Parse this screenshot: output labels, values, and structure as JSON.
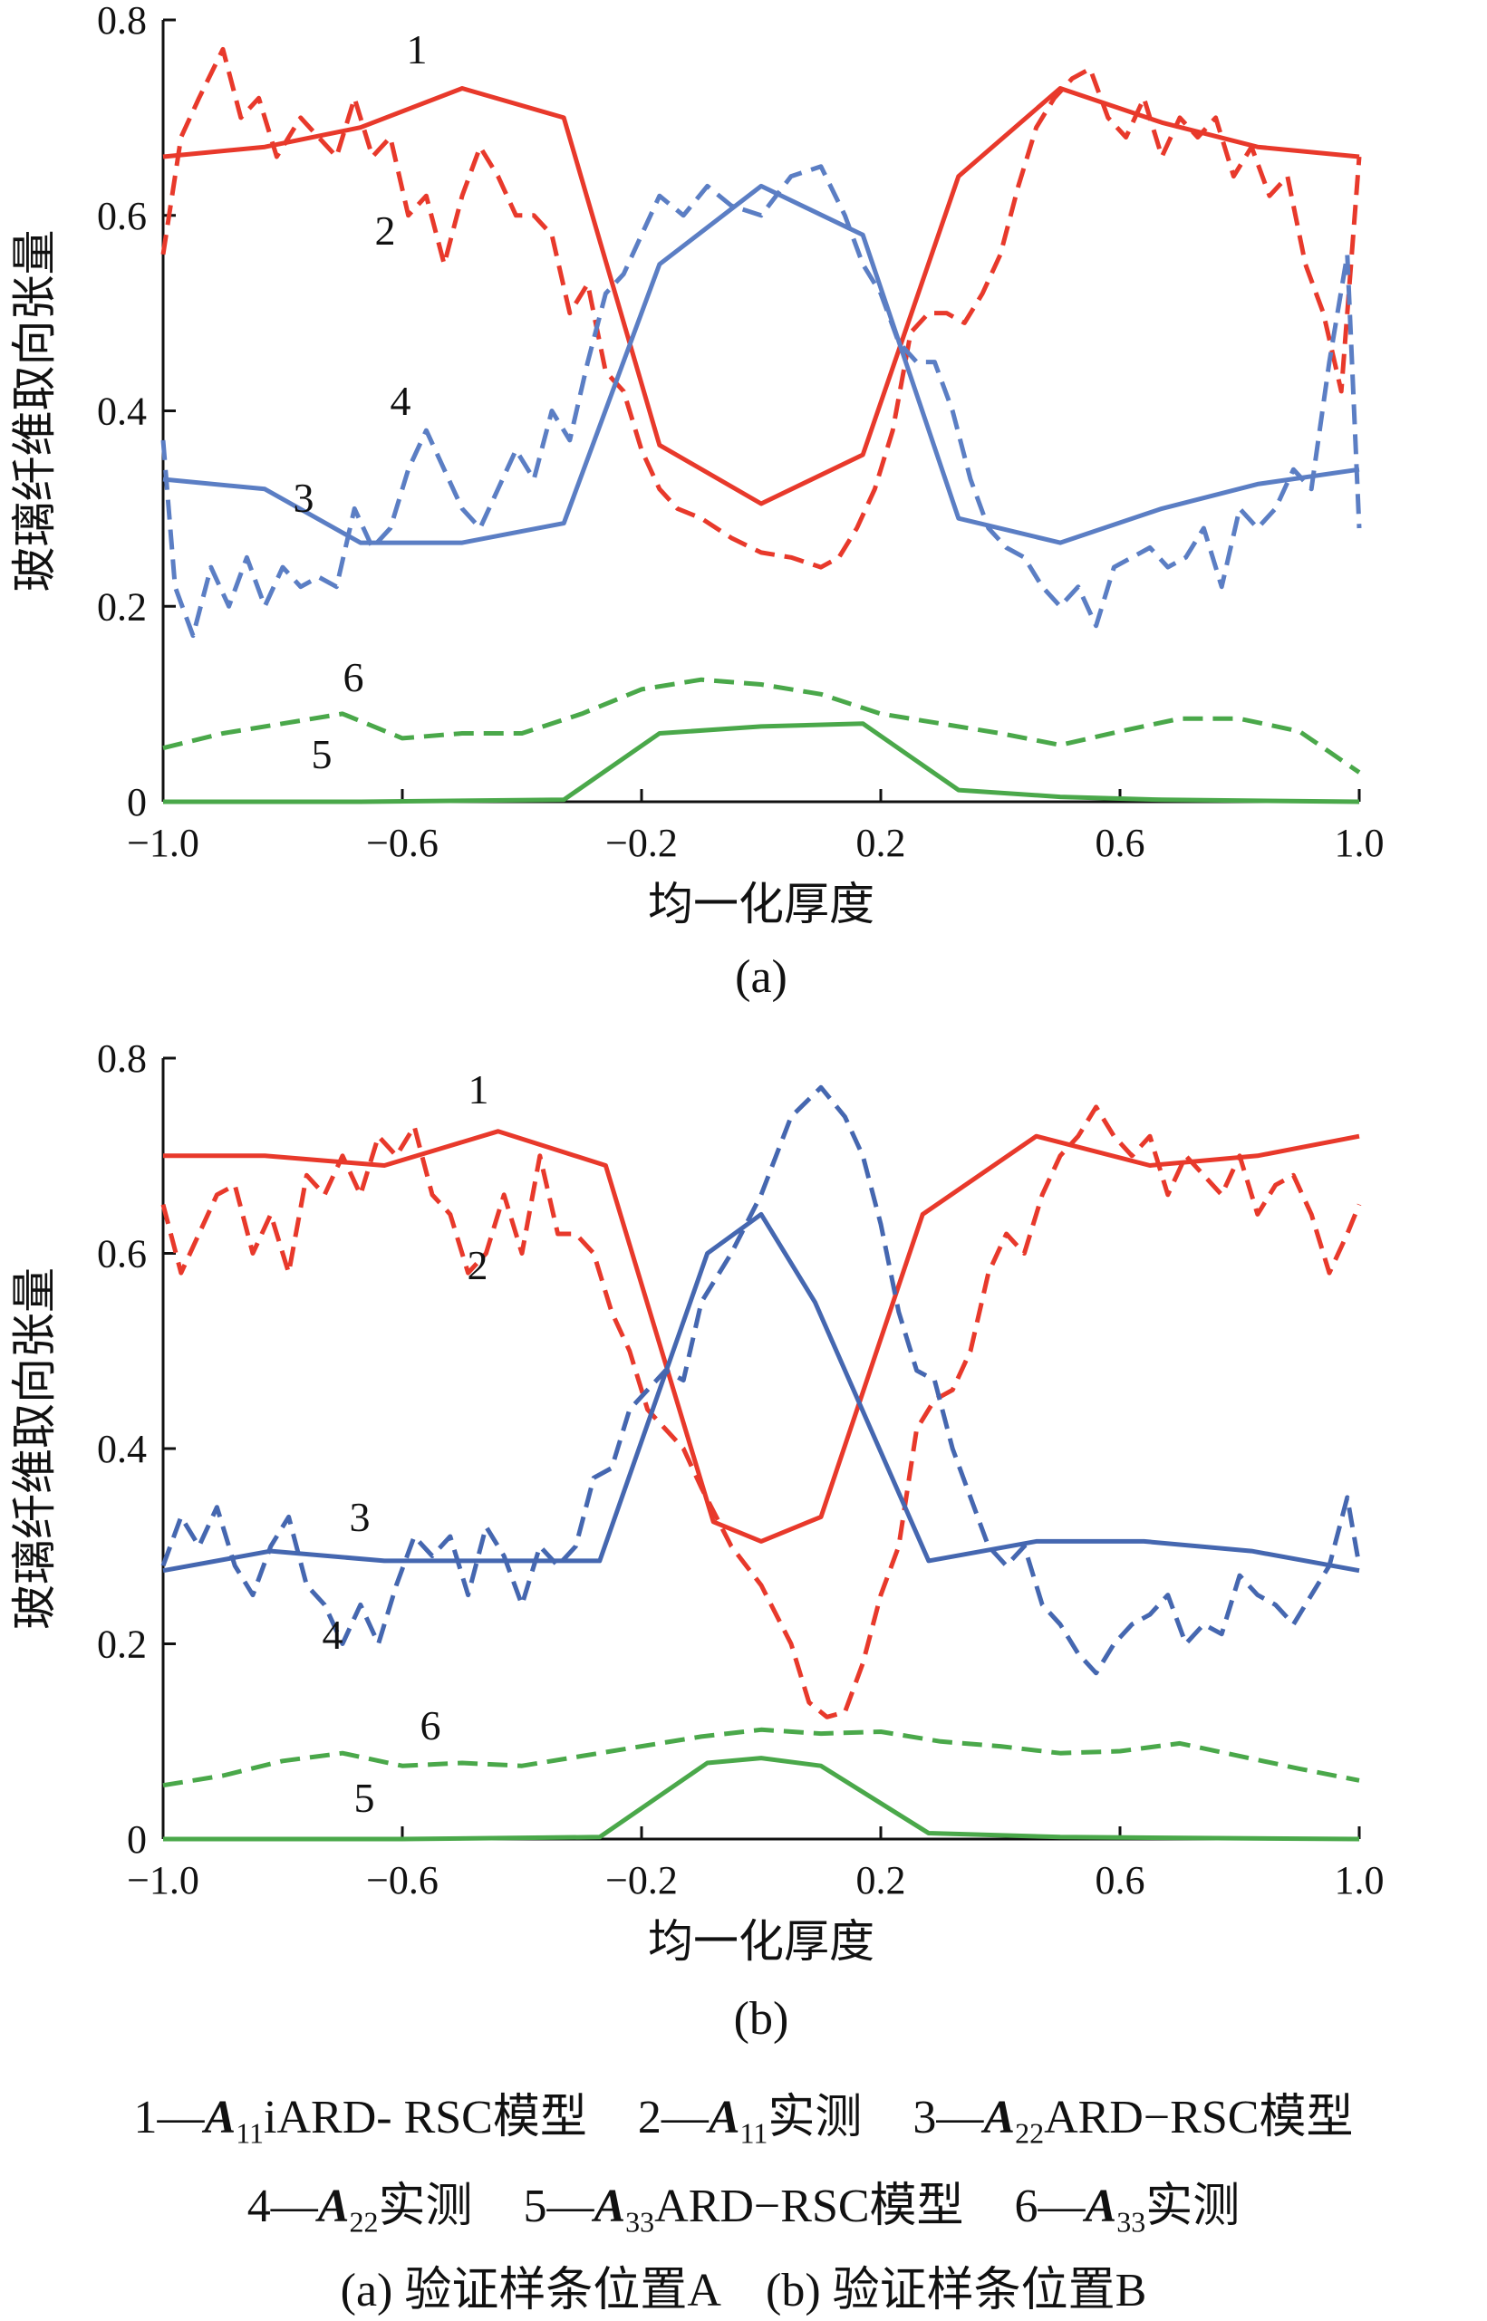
{
  "chart_data": [
    {
      "type": "line",
      "caption": "(a)",
      "xlabel": "均一化厚度",
      "ylabel": "玻璃纤维取向张量",
      "xlim": [
        -1.0,
        1.0
      ],
      "ylim": [
        0,
        0.8
      ],
      "xticks": [
        "−1.0",
        "−0.6",
        "−0.2",
        "0.2",
        "0.6",
        "1.0"
      ],
      "yticks": [
        "0",
        "0.2",
        "0.4",
        "0.6",
        "0.8"
      ],
      "series": [
        {
          "name": "1",
          "color": "#e8392b",
          "style": "solid",
          "x": [
            -1.0,
            -0.83,
            -0.67,
            -0.5,
            -0.33,
            -0.17,
            0.0,
            0.17,
            0.33,
            0.5,
            0.67,
            0.83,
            1.0
          ],
          "y": [
            0.66,
            0.67,
            0.69,
            0.73,
            0.7,
            0.365,
            0.305,
            0.355,
            0.64,
            0.73,
            0.695,
            0.67,
            0.66
          ]
        },
        {
          "name": "2",
          "color": "#e8392b",
          "style": "dashed",
          "x": [
            -1.0,
            -0.97,
            -0.94,
            -0.9,
            -0.87,
            -0.84,
            -0.81,
            -0.77,
            -0.74,
            -0.71,
            -0.68,
            -0.65,
            -0.62,
            -0.59,
            -0.56,
            -0.53,
            -0.5,
            -0.47,
            -0.44,
            -0.41,
            -0.38,
            -0.35,
            -0.32,
            -0.29,
            -0.26,
            -0.23,
            -0.2,
            -0.17,
            -0.14,
            -0.1,
            -0.05,
            0.0,
            0.05,
            0.1,
            0.13,
            0.16,
            0.19,
            0.22,
            0.25,
            0.28,
            0.31,
            0.34,
            0.37,
            0.4,
            0.43,
            0.46,
            0.49,
            0.52,
            0.55,
            0.58,
            0.61,
            0.64,
            0.67,
            0.7,
            0.73,
            0.76,
            0.79,
            0.82,
            0.85,
            0.88,
            0.91,
            0.94,
            0.97,
            1.0
          ],
          "y": [
            0.56,
            0.68,
            0.72,
            0.77,
            0.7,
            0.72,
            0.66,
            0.7,
            0.68,
            0.66,
            0.72,
            0.66,
            0.68,
            0.6,
            0.62,
            0.55,
            0.62,
            0.67,
            0.64,
            0.6,
            0.6,
            0.58,
            0.5,
            0.53,
            0.44,
            0.42,
            0.36,
            0.32,
            0.3,
            0.29,
            0.27,
            0.255,
            0.25,
            0.24,
            0.25,
            0.28,
            0.32,
            0.38,
            0.48,
            0.5,
            0.5,
            0.49,
            0.52,
            0.56,
            0.63,
            0.69,
            0.72,
            0.74,
            0.75,
            0.7,
            0.68,
            0.72,
            0.66,
            0.7,
            0.68,
            0.7,
            0.64,
            0.67,
            0.62,
            0.64,
            0.55,
            0.5,
            0.42,
            0.66
          ]
        },
        {
          "name": "3",
          "color": "#5b7ec4",
          "style": "solid",
          "x": [
            -1.0,
            -0.83,
            -0.67,
            -0.5,
            -0.33,
            -0.17,
            0.0,
            0.17,
            0.33,
            0.5,
            0.67,
            0.83,
            1.0
          ],
          "y": [
            0.33,
            0.32,
            0.265,
            0.265,
            0.285,
            0.55,
            0.63,
            0.58,
            0.29,
            0.265,
            0.3,
            0.325,
            0.34
          ]
        },
        {
          "name": "4",
          "color": "#5b7ec4",
          "style": "dashed",
          "x": [
            -1.0,
            -0.98,
            -0.95,
            -0.92,
            -0.89,
            -0.86,
            -0.83,
            -0.8,
            -0.77,
            -0.74,
            -0.71,
            -0.68,
            -0.65,
            -0.62,
            -0.59,
            -0.56,
            -0.53,
            -0.5,
            -0.47,
            -0.44,
            -0.41,
            -0.38,
            -0.35,
            -0.32,
            -0.29,
            -0.26,
            -0.23,
            -0.2,
            -0.17,
            -0.13,
            -0.09,
            -0.05,
            0.0,
            0.05,
            0.1,
            0.14,
            0.17,
            0.2,
            0.23,
            0.26,
            0.29,
            0.32,
            0.35,
            0.38,
            0.41,
            0.44,
            0.47,
            0.5,
            0.53,
            0.56,
            0.59,
            0.62,
            0.65,
            0.68,
            0.71,
            0.74,
            0.77,
            0.8,
            0.83,
            0.86,
            0.89,
            0.92,
            0.95,
            0.98,
            1.0
          ],
          "y": [
            0.37,
            0.22,
            0.17,
            0.24,
            0.2,
            0.25,
            0.2,
            0.24,
            0.22,
            0.23,
            0.22,
            0.3,
            0.26,
            0.28,
            0.34,
            0.38,
            0.34,
            0.3,
            0.28,
            0.32,
            0.36,
            0.33,
            0.4,
            0.37,
            0.45,
            0.52,
            0.54,
            0.58,
            0.62,
            0.6,
            0.63,
            0.61,
            0.6,
            0.64,
            0.65,
            0.6,
            0.55,
            0.52,
            0.47,
            0.45,
            0.45,
            0.4,
            0.33,
            0.28,
            0.26,
            0.25,
            0.22,
            0.2,
            0.22,
            0.18,
            0.24,
            0.25,
            0.26,
            0.24,
            0.25,
            0.28,
            0.22,
            0.3,
            0.28,
            0.3,
            0.34,
            0.32,
            0.45,
            0.56,
            0.28
          ]
        },
        {
          "name": "5",
          "color": "#4aa84a",
          "style": "solid",
          "x": [
            -1.0,
            -0.67,
            -0.33,
            -0.17,
            0.0,
            0.17,
            0.33,
            0.5,
            0.67,
            1.0
          ],
          "y": [
            0.0,
            0.0,
            0.002,
            0.07,
            0.077,
            0.08,
            0.012,
            0.005,
            0.002,
            0.0
          ]
        },
        {
          "name": "6",
          "color": "#4aa84a",
          "style": "dashed",
          "x": [
            -1.0,
            -0.9,
            -0.8,
            -0.7,
            -0.6,
            -0.5,
            -0.4,
            -0.3,
            -0.2,
            -0.1,
            0.0,
            0.1,
            0.2,
            0.3,
            0.4,
            0.5,
            0.6,
            0.7,
            0.8,
            0.9,
            1.0
          ],
          "y": [
            0.055,
            0.07,
            0.08,
            0.09,
            0.065,
            0.07,
            0.07,
            0.09,
            0.115,
            0.125,
            0.12,
            0.11,
            0.09,
            0.08,
            0.07,
            0.058,
            0.072,
            0.085,
            0.085,
            0.072,
            0.03
          ]
        }
      ]
    },
    {
      "type": "line",
      "caption": "(b)",
      "xlabel": "均一化厚度",
      "ylabel": "玻璃纤维取向张量",
      "xlim": [
        -1.0,
        1.0
      ],
      "ylim": [
        0,
        0.8
      ],
      "xticks": [
        "−1.0",
        "−0.6",
        "−0.2",
        "0.2",
        "0.6",
        "1.0"
      ],
      "yticks": [
        "0",
        "0.2",
        "0.4",
        "0.6",
        "0.8"
      ],
      "series": [
        {
          "name": "1",
          "color": "#e8392b",
          "style": "solid",
          "x": [
            -1.0,
            -0.83,
            -0.63,
            -0.44,
            -0.26,
            -0.08,
            0.0,
            0.1,
            0.27,
            0.46,
            0.65,
            0.83,
            1.0
          ],
          "y": [
            0.7,
            0.7,
            0.69,
            0.725,
            0.69,
            0.325,
            0.305,
            0.33,
            0.64,
            0.72,
            0.69,
            0.7,
            0.72
          ]
        },
        {
          "name": "2",
          "color": "#e8392b",
          "style": "dashed",
          "x": [
            -1.0,
            -0.97,
            -0.94,
            -0.91,
            -0.88,
            -0.85,
            -0.82,
            -0.79,
            -0.76,
            -0.73,
            -0.7,
            -0.67,
            -0.64,
            -0.61,
            -0.58,
            -0.55,
            -0.52,
            -0.49,
            -0.46,
            -0.43,
            -0.4,
            -0.37,
            -0.34,
            -0.31,
            -0.28,
            -0.25,
            -0.22,
            -0.19,
            -0.16,
            -0.13,
            -0.1,
            -0.05,
            0.0,
            0.05,
            0.08,
            0.11,
            0.14,
            0.17,
            0.2,
            0.23,
            0.26,
            0.29,
            0.32,
            0.35,
            0.38,
            0.41,
            0.44,
            0.47,
            0.5,
            0.53,
            0.56,
            0.59,
            0.62,
            0.65,
            0.68,
            0.71,
            0.74,
            0.77,
            0.8,
            0.83,
            0.86,
            0.89,
            0.92,
            0.95,
            0.98,
            1.0
          ],
          "y": [
            0.65,
            0.58,
            0.62,
            0.66,
            0.67,
            0.6,
            0.64,
            0.58,
            0.68,
            0.66,
            0.7,
            0.66,
            0.72,
            0.7,
            0.73,
            0.66,
            0.64,
            0.58,
            0.6,
            0.66,
            0.6,
            0.7,
            0.62,
            0.62,
            0.6,
            0.54,
            0.5,
            0.44,
            0.42,
            0.4,
            0.36,
            0.3,
            0.26,
            0.2,
            0.14,
            0.125,
            0.13,
            0.18,
            0.25,
            0.3,
            0.42,
            0.45,
            0.46,
            0.5,
            0.58,
            0.62,
            0.6,
            0.66,
            0.7,
            0.72,
            0.75,
            0.72,
            0.7,
            0.72,
            0.66,
            0.7,
            0.68,
            0.66,
            0.7,
            0.64,
            0.67,
            0.68,
            0.64,
            0.58,
            0.62,
            0.65
          ]
        },
        {
          "name": "3",
          "color": "#4567b0",
          "style": "solid",
          "x": [
            -1.0,
            -0.82,
            -0.63,
            -0.45,
            -0.27,
            -0.09,
            0.0,
            0.09,
            0.28,
            0.46,
            0.64,
            0.82,
            1.0
          ],
          "y": [
            0.275,
            0.295,
            0.285,
            0.285,
            0.285,
            0.6,
            0.64,
            0.55,
            0.285,
            0.305,
            0.305,
            0.295,
            0.275
          ]
        },
        {
          "name": "4",
          "color": "#4567b0",
          "style": "dashed",
          "x": [
            -1.0,
            -0.97,
            -0.94,
            -0.91,
            -0.88,
            -0.85,
            -0.82,
            -0.79,
            -0.76,
            -0.73,
            -0.7,
            -0.67,
            -0.64,
            -0.61,
            -0.58,
            -0.55,
            -0.52,
            -0.49,
            -0.46,
            -0.43,
            -0.4,
            -0.37,
            -0.34,
            -0.31,
            -0.28,
            -0.25,
            -0.22,
            -0.19,
            -0.16,
            -0.13,
            -0.1,
            -0.05,
            0.0,
            0.05,
            0.1,
            0.14,
            0.17,
            0.2,
            0.23,
            0.26,
            0.29,
            0.32,
            0.35,
            0.38,
            0.41,
            0.44,
            0.47,
            0.5,
            0.53,
            0.56,
            0.59,
            0.62,
            0.65,
            0.68,
            0.71,
            0.74,
            0.77,
            0.8,
            0.83,
            0.86,
            0.89,
            0.92,
            0.95,
            0.98,
            1.0
          ],
          "y": [
            0.28,
            0.33,
            0.3,
            0.34,
            0.28,
            0.25,
            0.3,
            0.33,
            0.26,
            0.24,
            0.2,
            0.24,
            0.2,
            0.26,
            0.31,
            0.29,
            0.31,
            0.25,
            0.32,
            0.29,
            0.24,
            0.3,
            0.28,
            0.3,
            0.37,
            0.38,
            0.44,
            0.46,
            0.48,
            0.47,
            0.55,
            0.6,
            0.66,
            0.74,
            0.77,
            0.74,
            0.7,
            0.63,
            0.54,
            0.48,
            0.47,
            0.4,
            0.35,
            0.3,
            0.28,
            0.3,
            0.24,
            0.22,
            0.19,
            0.17,
            0.2,
            0.22,
            0.23,
            0.25,
            0.2,
            0.22,
            0.21,
            0.27,
            0.25,
            0.24,
            0.22,
            0.25,
            0.28,
            0.35,
            0.28
          ]
        },
        {
          "name": "5",
          "color": "#4aa84a",
          "style": "solid",
          "x": [
            -1.0,
            -0.6,
            -0.27,
            -0.09,
            0.0,
            0.1,
            0.28,
            0.5,
            1.0
          ],
          "y": [
            0.0,
            0.0,
            0.002,
            0.078,
            0.083,
            0.075,
            0.006,
            0.002,
            0.0
          ]
        },
        {
          "name": "6",
          "color": "#4aa84a",
          "style": "dashed",
          "x": [
            -1.0,
            -0.9,
            -0.8,
            -0.7,
            -0.6,
            -0.5,
            -0.4,
            -0.3,
            -0.2,
            -0.1,
            0.0,
            0.1,
            0.2,
            0.3,
            0.4,
            0.5,
            0.6,
            0.7,
            0.8,
            0.9,
            1.0
          ],
          "y": [
            0.055,
            0.065,
            0.08,
            0.088,
            0.075,
            0.078,
            0.075,
            0.085,
            0.095,
            0.105,
            0.112,
            0.108,
            0.11,
            0.1,
            0.095,
            0.088,
            0.09,
            0.098,
            0.085,
            0.072,
            0.06
          ]
        }
      ]
    }
  ],
  "legend_lines": [
    [
      {
        "num": "1—",
        "sym": "A",
        "sub": "11",
        "text": "iARD- RSC模型"
      },
      {
        "num": "2—",
        "sym": "A",
        "sub": "11",
        "text": "实测"
      },
      {
        "num": "3—",
        "sym": "A",
        "sub": "22",
        "text": "ARD−RSC模型"
      }
    ],
    [
      {
        "num": "4—",
        "sym": "A",
        "sub": "22",
        "text": "实测"
      },
      {
        "num": "5—",
        "sym": "A",
        "sub": "33",
        "text": "ARD−RSC模型"
      },
      {
        "num": "6—",
        "sym": "A",
        "sub": "33",
        "text": "实测"
      }
    ]
  ],
  "caption_line": "(a) 验证样条位置A　(b) 验证样条位置B"
}
